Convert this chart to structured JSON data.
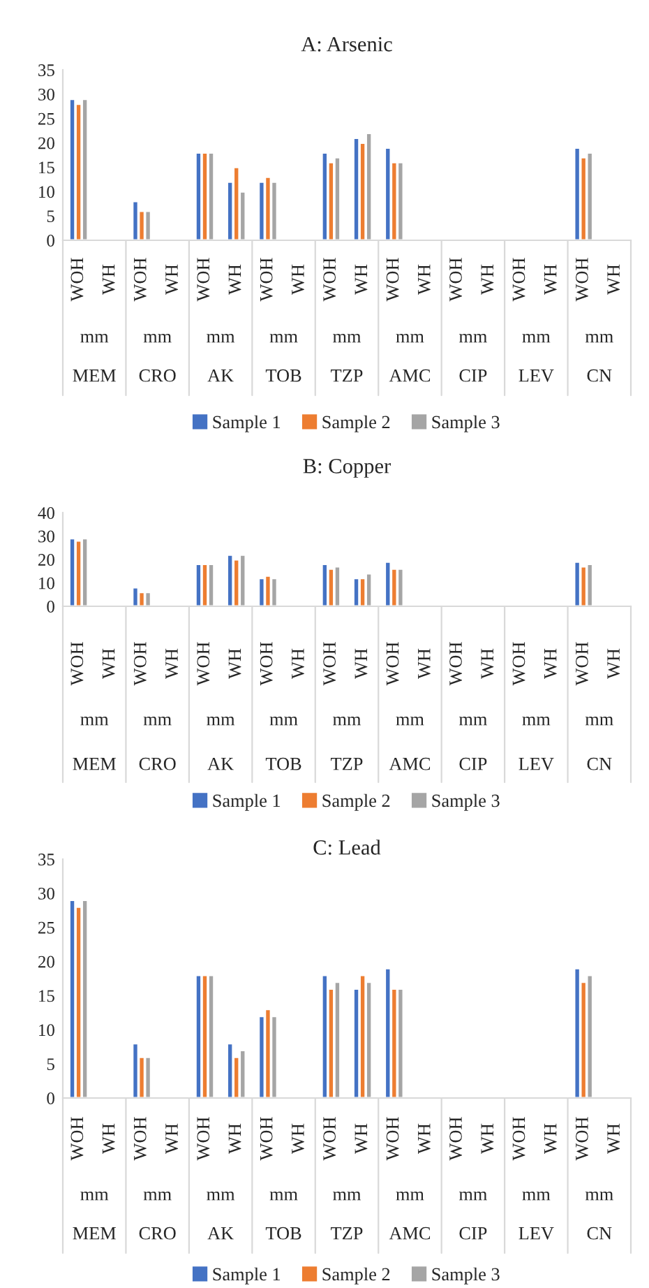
{
  "chart_data": [
    {
      "type": "bar",
      "title": "A: Arsenic",
      "categories": [
        "WOH",
        "WH",
        "WOH",
        "WH",
        "WOH",
        "WH",
        "WOH",
        "WH",
        "WOH",
        "WH",
        "WOH",
        "WH",
        "WOH",
        "WH",
        "WOH",
        "WH",
        "WOH",
        "WH"
      ],
      "annotations": [
        "mm",
        "MEM",
        "mm",
        "CRO",
        "mm",
        "AK",
        "mm",
        "TOB",
        "mm",
        "TZP",
        "mm",
        "AMC",
        "mm",
        "CIP",
        "mm",
        "LEV",
        "mm",
        "CN"
      ],
      "series": [
        {
          "name": "Sample 1",
          "color": "#4472c4",
          "values": [
            29,
            null,
            8,
            null,
            18,
            12,
            12,
            null,
            18,
            21,
            19,
            null,
            null,
            null,
            null,
            null,
            19,
            null
          ]
        },
        {
          "name": "Sample 2",
          "color": "#ed7d31",
          "values": [
            28,
            null,
            6,
            null,
            18,
            15,
            13,
            null,
            16,
            20,
            16,
            null,
            null,
            null,
            null,
            null,
            17,
            null
          ]
        },
        {
          "name": "Sample 3",
          "color": "#a5a5a5",
          "values": [
            29,
            null,
            6,
            null,
            18,
            10,
            12,
            null,
            17,
            22,
            16,
            null,
            null,
            null,
            null,
            null,
            18,
            null
          ]
        }
      ],
      "ylim": [
        0,
        35
      ],
      "yticks": [
        0,
        5,
        10,
        15,
        20,
        25,
        30,
        35
      ],
      "grid": false,
      "legend": "bottom"
    },
    {
      "type": "bar",
      "title": "B: Copper",
      "categories": [
        "WOH",
        "WH",
        "WOH",
        "WH",
        "WOH",
        "WH",
        "WOH",
        "WH",
        "WOH",
        "WH",
        "WOH",
        "WH",
        "WOH",
        "WH",
        "WOH",
        "WH",
        "WOH",
        "WH"
      ],
      "annotations": [
        "mm",
        "MEM",
        "mm",
        "CRO",
        "mm",
        "AK",
        "mm",
        "TOB",
        "mm",
        "TZP",
        "mm",
        "AMC",
        "mm",
        "CIP",
        "mm",
        "LEV",
        "mm",
        "CN"
      ],
      "series": [
        {
          "name": "Sample 1",
          "color": "#4472c4",
          "values": [
            29,
            null,
            8,
            null,
            18,
            22,
            12,
            null,
            18,
            12,
            19,
            null,
            null,
            null,
            null,
            null,
            19,
            null
          ]
        },
        {
          "name": "Sample 2",
          "color": "#ed7d31",
          "values": [
            28,
            null,
            6,
            null,
            18,
            20,
            13,
            null,
            16,
            12,
            16,
            null,
            null,
            null,
            null,
            null,
            17,
            null
          ]
        },
        {
          "name": "Sample 3",
          "color": "#a5a5a5",
          "values": [
            29,
            null,
            6,
            null,
            18,
            22,
            12,
            null,
            17,
            14,
            16,
            null,
            null,
            null,
            null,
            null,
            18,
            null
          ]
        }
      ],
      "ylim": [
        0,
        40
      ],
      "yticks": [
        0,
        10,
        20,
        30,
        40
      ],
      "grid": false,
      "legend": "bottom"
    },
    {
      "type": "bar",
      "title": "C: Lead",
      "categories": [
        "WOH",
        "WH",
        "WOH",
        "WH",
        "WOH",
        "WH",
        "WOH",
        "WH",
        "WOH",
        "WH",
        "WOH",
        "WH",
        "WOH",
        "WH",
        "WOH",
        "WH",
        "WOH",
        "WH"
      ],
      "annotations": [
        "mm",
        "MEM",
        "mm",
        "CRO",
        "mm",
        "AK",
        "mm",
        "TOB",
        "mm",
        "TZP",
        "mm",
        "AMC",
        "mm",
        "CIP",
        "mm",
        "LEV",
        "mm",
        "CN"
      ],
      "series": [
        {
          "name": "Sample 1",
          "color": "#4472c4",
          "values": [
            29,
            null,
            8,
            null,
            18,
            8,
            12,
            null,
            18,
            16,
            19,
            null,
            null,
            null,
            null,
            null,
            19,
            null
          ]
        },
        {
          "name": "Sample 2",
          "color": "#ed7d31",
          "values": [
            28,
            null,
            6,
            null,
            18,
            6,
            13,
            null,
            16,
            18,
            16,
            null,
            null,
            null,
            null,
            null,
            17,
            null
          ]
        },
        {
          "name": "Sample 3",
          "color": "#a5a5a5",
          "values": [
            29,
            null,
            6,
            null,
            18,
            7,
            12,
            null,
            17,
            17,
            16,
            null,
            null,
            null,
            null,
            null,
            18,
            null
          ]
        }
      ],
      "ylim": [
        0,
        35
      ],
      "yticks": [
        0,
        5,
        10,
        15,
        20,
        25,
        30,
        35
      ],
      "grid": false,
      "legend": "bottom"
    }
  ]
}
